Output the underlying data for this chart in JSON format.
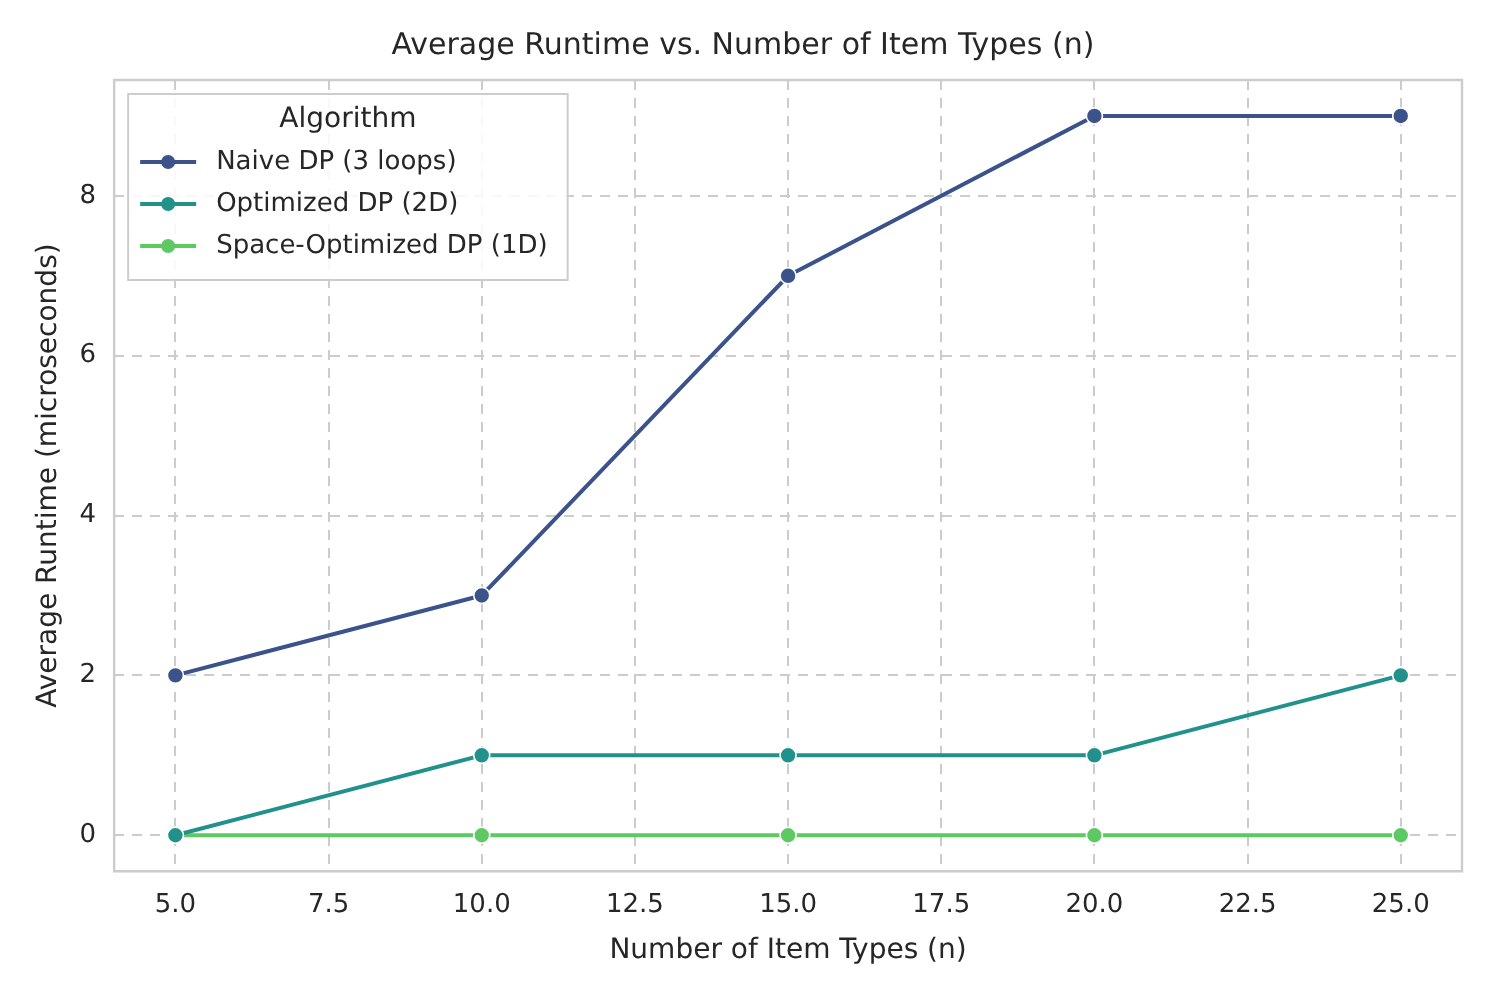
{
  "chart_data": {
    "type": "line",
    "title": "Average Runtime vs. Number of Item Types (n)",
    "xlabel": "Number of Item Types (n)",
    "ylabel": "Average Runtime (microseconds)",
    "legend_title": "Algorithm",
    "x": [
      5,
      10,
      15,
      20,
      25
    ],
    "series": [
      {
        "name": "Naive DP (3 loops)",
        "color": "#3b528b",
        "values": [
          2,
          3,
          7,
          9,
          9
        ]
      },
      {
        "name": "Optimized DP (2D)",
        "color": "#21918c",
        "values": [
          0,
          1,
          1,
          1,
          2
        ]
      },
      {
        "name": "Space-Optimized DP (1D)",
        "color": "#5ec962",
        "values": [
          0,
          0,
          0,
          0,
          0
        ]
      }
    ],
    "xlim": [
      4,
      26
    ],
    "xticks": [
      {
        "value": 5,
        "label": "5.0"
      },
      {
        "value": 7.5,
        "label": "7.5"
      },
      {
        "value": 10,
        "label": "10.0"
      },
      {
        "value": 12.5,
        "label": "12.5"
      },
      {
        "value": 15,
        "label": "15.0"
      },
      {
        "value": 17.5,
        "label": "17.5"
      },
      {
        "value": 20,
        "label": "20.0"
      },
      {
        "value": 22.5,
        "label": "22.5"
      },
      {
        "value": 25,
        "label": "25.0"
      }
    ],
    "ylim": [
      -0.45,
      9.45
    ],
    "yticks": [
      0,
      2,
      4,
      6,
      8
    ],
    "grid": true,
    "legend": "top left",
    "marker": "circle",
    "line_style": "solid"
  }
}
